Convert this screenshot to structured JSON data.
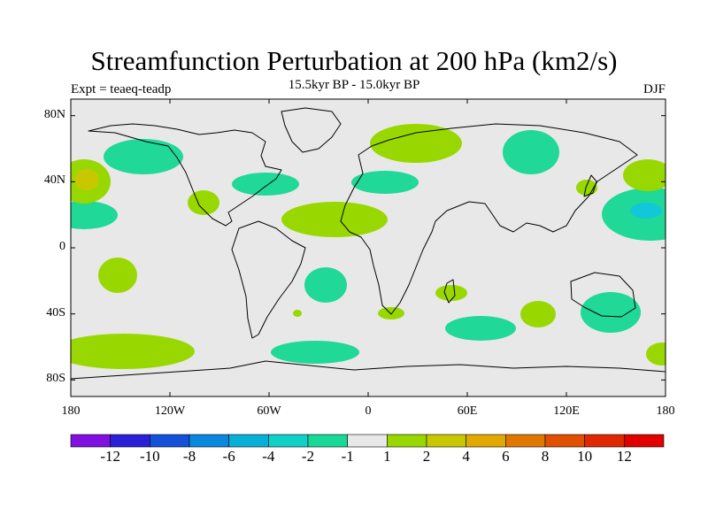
{
  "title": "Streamfunction Perturbation at 200 hPa (km2/s)",
  "left_string": "Expt = teaeq-teadp",
  "center_string": "15.5kyr BP - 15.0kyr BP",
  "right_string": "DJF",
  "axes": {
    "y_ticks": [
      "80N",
      "40N",
      "0",
      "40S",
      "80S"
    ],
    "y_values": [
      80,
      40,
      0,
      -40,
      -80
    ],
    "x_ticks": [
      "180",
      "120W",
      "60W",
      "0",
      "60E",
      "120E",
      "180"
    ],
    "x_values": [
      -180,
      -120,
      -60,
      0,
      60,
      120,
      180
    ]
  },
  "colorbar": {
    "labels": [
      "-12",
      "-10",
      "-8",
      "-6",
      "-4",
      "-2",
      "-1",
      "1",
      "2",
      "4",
      "6",
      "8",
      "10",
      "12"
    ],
    "colors": [
      "#7f10e0",
      "#2a20d8",
      "#1550d8",
      "#0a88e0",
      "#08b0d8",
      "#10d0c8",
      "#18d898",
      "#e8e8e8",
      "#98d800",
      "#c8c800",
      "#e0a800",
      "#e07800",
      "#e05000",
      "#e02800",
      "#e00000"
    ]
  },
  "colors": {
    "ocean_bg": "#e8e8e8",
    "neg_light": "#20d898",
    "neg_mid": "#10d0c8",
    "neg_strong": "#18b8e0",
    "pos_light": "#98d800",
    "pos_mid": "#c8c800"
  }
}
